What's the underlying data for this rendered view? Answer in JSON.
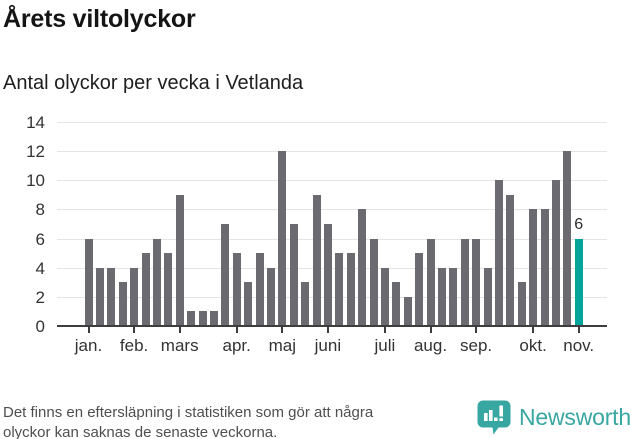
{
  "title": "Årets viltolyckor",
  "subtitle": "Antal olyckor per vecka i Vetlanda",
  "footer": {
    "lines": [
      "Det finns en eftersläpning i statistiken som gör att några",
      "olyckor kan saknas de senaste veckorna."
    ]
  },
  "branding": {
    "name": "Newsworthy",
    "logo_icon": "speech-bubble-bar-chart-icon",
    "color": "#38a7a1"
  },
  "colors": {
    "bar": "#6c6a71",
    "highlight": "#00a49b",
    "gridline": "#e4e4e4",
    "axis": "#3d3d3d",
    "axis_text": "#333333",
    "title_text": "#141414",
    "footer_text": "#4f4f4f"
  },
  "chart_data": {
    "type": "bar",
    "title": "Årets viltolyckor",
    "subtitle": "Antal olyckor per vecka i Vetlanda",
    "xlabel": "",
    "ylabel": "",
    "ylim": [
      0,
      14
    ],
    "yticks": [
      0,
      2,
      4,
      6,
      8,
      10,
      12,
      14
    ],
    "grid": true,
    "legend": false,
    "x_unit": "vecka",
    "values": [
      6,
      4,
      4,
      3,
      4,
      5,
      6,
      5,
      9,
      1,
      1,
      1,
      7,
      5,
      3,
      5,
      4,
      12,
      7,
      3,
      9,
      7,
      5,
      5,
      8,
      6,
      4,
      3,
      2,
      5,
      6,
      4,
      4,
      6,
      6,
      4,
      10,
      9,
      3,
      8,
      8,
      10,
      12,
      6
    ],
    "month_ticks": [
      {
        "index": 0,
        "label": "jan."
      },
      {
        "index": 4,
        "label": "feb."
      },
      {
        "index": 8,
        "label": "mars"
      },
      {
        "index": 13,
        "label": "apr."
      },
      {
        "index": 17,
        "label": "maj"
      },
      {
        "index": 21,
        "label": "juni"
      },
      {
        "index": 26,
        "label": "juli"
      },
      {
        "index": 30,
        "label": "aug."
      },
      {
        "index": 34,
        "label": "sep."
      },
      {
        "index": 39,
        "label": "okt."
      },
      {
        "index": 43,
        "label": "nov."
      }
    ],
    "highlight_index": 43,
    "highlight_label": "6"
  }
}
